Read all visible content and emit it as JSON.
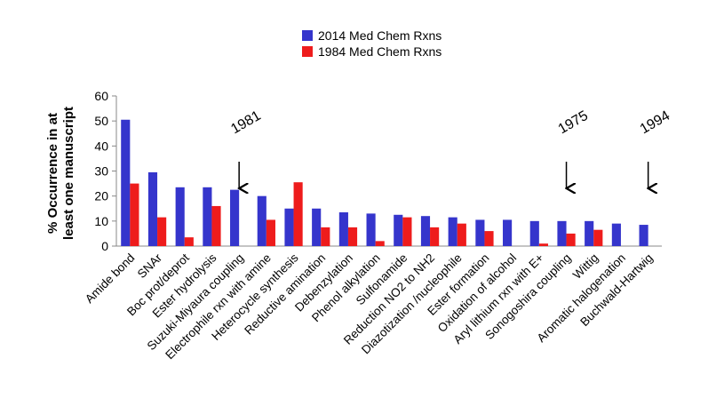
{
  "chart_data": {
    "type": "bar",
    "ylabel": [
      "% Occurrence in at",
      "least one manuscript"
    ],
    "categories": [
      "Amide bond",
      "SNAr",
      "Boc prot/deprot",
      "Ester hydrolysis",
      "Suzuki-Miyaura coupling",
      "Electrophile rxn with amine",
      "Heterocycle synthesis",
      "Reductive amination",
      "Debenzylation",
      "Phenol alkylation",
      "Sulfonamide",
      "Reduction NO2 to NH2",
      "Diazotization /nucleophile",
      "Ester formation",
      "Oxidation of alcohol",
      "Aryl lithium rxn with E+",
      "Sonogoshira coupling",
      "Wittig",
      "Aromatic halogenation",
      "Buchwald-Hartwig"
    ],
    "series": [
      {
        "name": "2014 Med Chem Rxns",
        "color": "#3535cc",
        "values": [
          50.5,
          29.5,
          23.5,
          23.5,
          22.5,
          20,
          15,
          15,
          13.5,
          13,
          12.5,
          12,
          11.5,
          10.5,
          10.5,
          10,
          10,
          10,
          9,
          8.5
        ]
      },
      {
        "name": "1984 Med Chem Rxns",
        "color": "#ee1c1c",
        "values": [
          25,
          11.5,
          3.5,
          16,
          0,
          10.5,
          25.5,
          7.5,
          7.5,
          2,
          11.5,
          7.5,
          9,
          6,
          0,
          1,
          5,
          6.5,
          0,
          0
        ]
      }
    ],
    "annotations": [
      {
        "text": "1981",
        "category": "Suzuki-Miyaura coupling"
      },
      {
        "text": "1975",
        "category": "Sonogoshira coupling"
      },
      {
        "text": "1994",
        "category": "Buchwald-Hartwig"
      }
    ],
    "ylim": [
      0,
      60
    ],
    "yticks": [
      0,
      10,
      20,
      30,
      40,
      50,
      60
    ]
  }
}
